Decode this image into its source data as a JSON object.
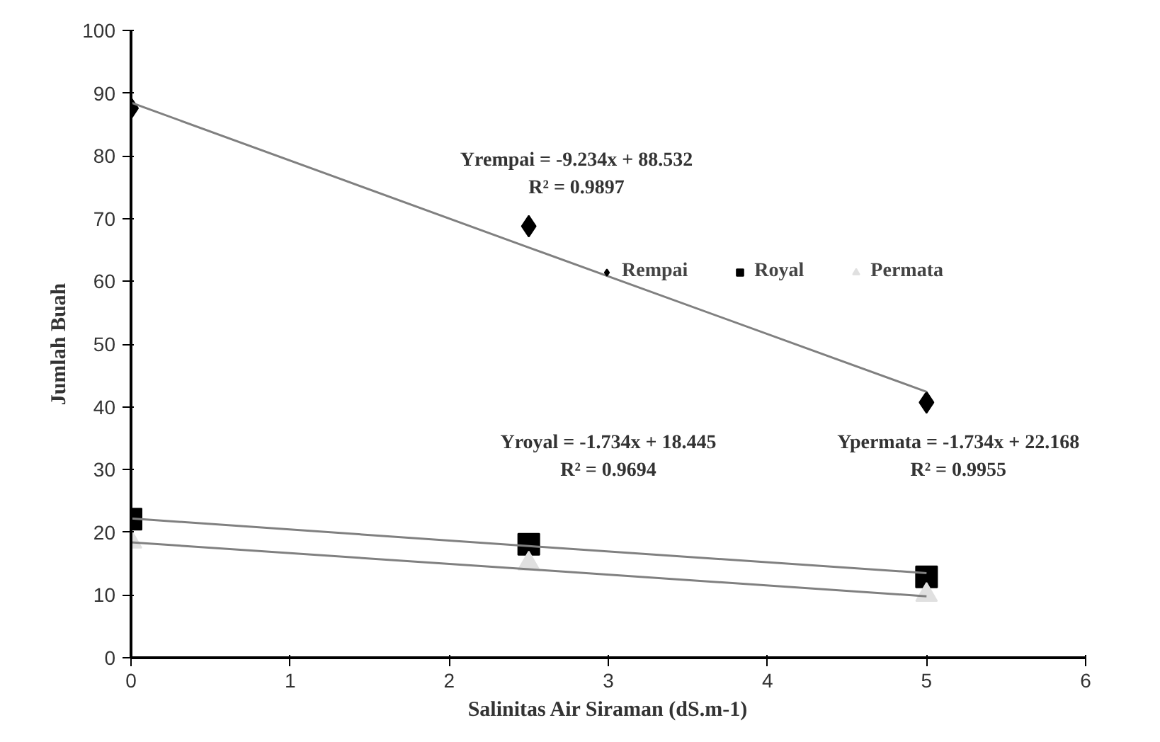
{
  "chart_data": {
    "type": "scatter",
    "xlabel": "Salinitas Air Siraman (dS.m-1)",
    "ylabel": "Jumlah Buah",
    "x": [
      0,
      2.5,
      5
    ],
    "series": [
      {
        "name": "Rempai",
        "color": "#000000",
        "marker": "diamond",
        "values": [
          87.6,
          68.8,
          40.7
        ]
      },
      {
        "name": "Royal",
        "color": "#000000",
        "marker": "square",
        "values": [
          22.1,
          18.1,
          12.9
        ]
      },
      {
        "name": "Permata",
        "color": "#e0e0e0",
        "marker": "triangle",
        "values": [
          18.5,
          15.0,
          10.0
        ]
      },
      {
        "type": "line",
        "color": "#808080",
        "values": [
          88.5,
          65.4,
          42.4
        ]
      },
      {
        "type": "line",
        "color": "#808080",
        "values": [
          22.2,
          17.8,
          13.5
        ]
      },
      {
        "type": "line",
        "color": "#808080",
        "values": [
          18.4,
          14.1,
          9.8
        ]
      }
    ],
    "annotations": [
      "Yrempai = -9.234x + 88.532\nR² = 0.9897",
      "Yroyal = -1.734x + 18.445\nR² = 0.9694",
      "Ypermata = -1.734x + 22.168\nR² = 0.9955"
    ],
    "xlim": [
      0,
      6
    ],
    "xticks": [
      0,
      1,
      2,
      3,
      4,
      5,
      6
    ],
    "ylim": [
      0,
      100
    ],
    "yticks": [
      0,
      10,
      20,
      30,
      40,
      50,
      60,
      70,
      80,
      90,
      100
    ],
    "grid": false,
    "legend": "right"
  }
}
